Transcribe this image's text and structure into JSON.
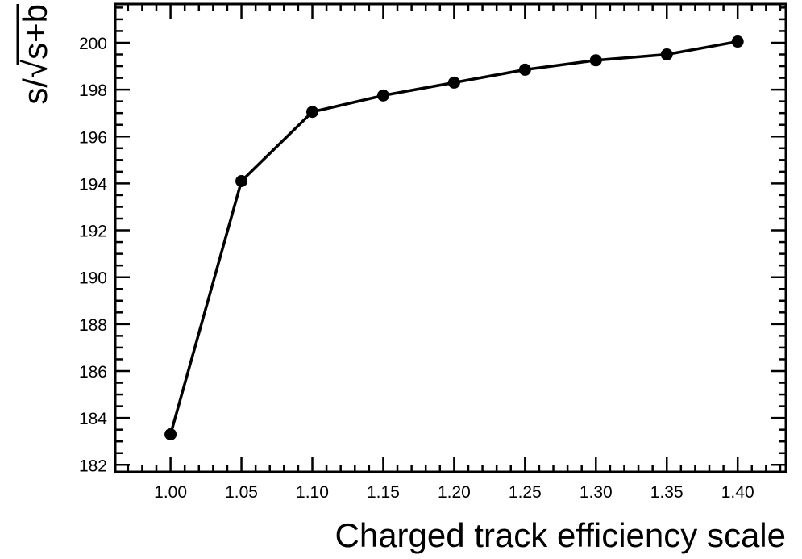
{
  "chart_data": {
    "type": "line",
    "title": "",
    "xlabel": "Charged track efficiency scale",
    "ylabel": "s/√s+b",
    "x": [
      1.0,
      1.05,
      1.1,
      1.15,
      1.2,
      1.25,
      1.3,
      1.35,
      1.4
    ],
    "series": [
      {
        "name": "s/sqrt(s+b)",
        "values": [
          183.3,
          194.1,
          197.05,
          197.75,
          198.3,
          198.85,
          199.25,
          199.5,
          200.05
        ],
        "color": "#000000"
      }
    ],
    "xlim": [
      0.961,
      1.434
    ],
    "ylim": [
      181.7,
      201.65
    ],
    "xticks": [
      "1.00",
      "1.05",
      "1.10",
      "1.15",
      "1.20",
      "1.25",
      "1.30",
      "1.35",
      "1.40"
    ],
    "yticks": [
      "182",
      "184",
      "186",
      "188",
      "190",
      "192",
      "194",
      "196",
      "198",
      "200"
    ],
    "grid": false,
    "legend": "none"
  }
}
